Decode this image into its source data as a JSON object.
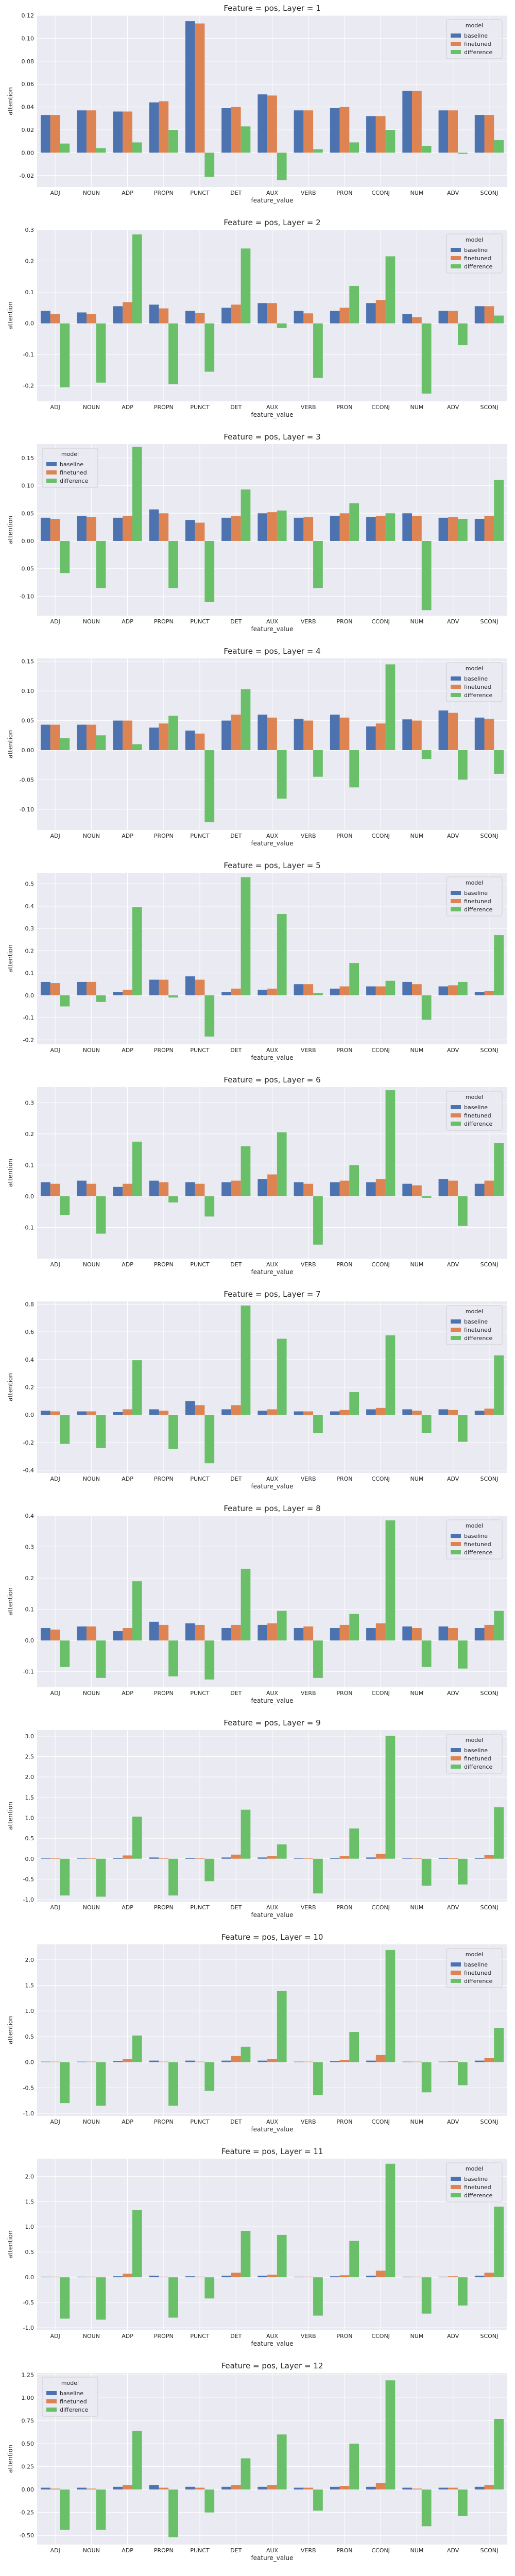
{
  "colors": {
    "baseline": "#4c72b0",
    "finetuned": "#dd8452",
    "difference": "#6abf69",
    "plot_bg": "#eaeaf2",
    "grid": "#ffffff"
  },
  "legend_title": "model",
  "chart_data": [
    {
      "type": "bar",
      "title": "Feature = pos, Layer = 1",
      "xlabel": "feature_value",
      "ylabel": "attention",
      "categories": [
        "ADJ",
        "NOUN",
        "ADP",
        "PROPN",
        "PUNCT",
        "DET",
        "AUX",
        "VERB",
        "PRON",
        "CCONJ",
        "NUM",
        "ADV",
        "SCONJ"
      ],
      "ylim": [
        -0.03,
        0.12
      ],
      "yticks": [
        -0.02,
        0.0,
        0.02,
        0.04,
        0.06,
        0.08,
        0.1,
        0.12
      ],
      "tick_decimals": 2,
      "legend_position": "top-right",
      "series": [
        {
          "name": "baseline",
          "values": [
            0.033,
            0.037,
            0.036,
            0.044,
            0.115,
            0.039,
            0.051,
            0.037,
            0.039,
            0.032,
            0.054,
            0.037,
            0.033
          ]
        },
        {
          "name": "finetuned",
          "values": [
            0.033,
            0.037,
            0.036,
            0.045,
            0.113,
            0.04,
            0.05,
            0.037,
            0.04,
            0.032,
            0.054,
            0.037,
            0.033
          ]
        },
        {
          "name": "difference",
          "values": [
            0.008,
            0.004,
            0.009,
            0.02,
            -0.021,
            0.023,
            -0.024,
            0.003,
            0.009,
            0.02,
            0.006,
            -0.001,
            0.011
          ]
        }
      ]
    },
    {
      "type": "bar",
      "title": "Feature = pos, Layer = 2",
      "xlabel": "feature_value",
      "ylabel": "attention",
      "categories": [
        "ADJ",
        "NOUN",
        "ADP",
        "PROPN",
        "PUNCT",
        "DET",
        "AUX",
        "VERB",
        "PRON",
        "CCONJ",
        "NUM",
        "ADV",
        "SCONJ"
      ],
      "ylim": [
        -0.25,
        0.3
      ],
      "yticks": [
        -0.2,
        -0.1,
        0.0,
        0.1,
        0.2,
        0.3
      ],
      "tick_decimals": 1,
      "legend_position": "top-right",
      "series": [
        {
          "name": "baseline",
          "values": [
            0.04,
            0.035,
            0.055,
            0.06,
            0.04,
            0.05,
            0.065,
            0.04,
            0.04,
            0.065,
            0.03,
            0.04,
            0.055
          ]
        },
        {
          "name": "finetuned",
          "values": [
            0.03,
            0.03,
            0.068,
            0.048,
            0.033,
            0.06,
            0.065,
            0.032,
            0.05,
            0.075,
            0.02,
            0.04,
            0.055
          ]
        },
        {
          "name": "difference",
          "values": [
            -0.205,
            -0.19,
            0.285,
            -0.195,
            -0.155,
            0.24,
            -0.015,
            -0.175,
            0.12,
            0.215,
            -0.225,
            -0.07,
            0.025
          ]
        }
      ]
    },
    {
      "type": "bar",
      "title": "Feature = pos, Layer = 3",
      "xlabel": "feature_value",
      "ylabel": "attention",
      "categories": [
        "ADJ",
        "NOUN",
        "ADP",
        "PROPN",
        "PUNCT",
        "DET",
        "AUX",
        "VERB",
        "PRON",
        "CCONJ",
        "NUM",
        "ADV",
        "SCONJ"
      ],
      "ylim": [
        -0.135,
        0.175
      ],
      "yticks": [
        -0.1,
        -0.05,
        0.0,
        0.05,
        0.1,
        0.15
      ],
      "tick_decimals": 2,
      "legend_position": "top-left",
      "series": [
        {
          "name": "baseline",
          "values": [
            0.042,
            0.045,
            0.042,
            0.057,
            0.038,
            0.042,
            0.05,
            0.042,
            0.045,
            0.043,
            0.05,
            0.042,
            0.04
          ]
        },
        {
          "name": "finetuned",
          "values": [
            0.04,
            0.043,
            0.045,
            0.05,
            0.033,
            0.045,
            0.052,
            0.043,
            0.05,
            0.045,
            0.045,
            0.043,
            0.045
          ]
        },
        {
          "name": "difference",
          "values": [
            -0.058,
            -0.085,
            0.17,
            -0.085,
            -0.11,
            0.093,
            0.055,
            -0.085,
            0.068,
            0.05,
            -0.125,
            0.04,
            0.11
          ]
        }
      ]
    },
    {
      "type": "bar",
      "title": "Feature = pos, Layer = 4",
      "xlabel": "feature_value",
      "ylabel": "attention",
      "categories": [
        "ADJ",
        "NOUN",
        "ADP",
        "PROPN",
        "PUNCT",
        "DET",
        "AUX",
        "VERB",
        "PRON",
        "CCONJ",
        "NUM",
        "ADV",
        "SCONJ"
      ],
      "ylim": [
        -0.135,
        0.155
      ],
      "yticks": [
        -0.1,
        -0.05,
        0.0,
        0.05,
        0.1,
        0.15
      ],
      "tick_decimals": 2,
      "legend_position": "top-right",
      "series": [
        {
          "name": "baseline",
          "values": [
            0.043,
            0.043,
            0.05,
            0.038,
            0.033,
            0.05,
            0.06,
            0.053,
            0.06,
            0.04,
            0.052,
            0.067,
            0.055
          ]
        },
        {
          "name": "finetuned",
          "values": [
            0.043,
            0.043,
            0.05,
            0.045,
            0.028,
            0.06,
            0.055,
            0.05,
            0.055,
            0.045,
            0.05,
            0.063,
            0.053
          ]
        },
        {
          "name": "difference",
          "values": [
            0.02,
            0.025,
            0.01,
            0.058,
            -0.122,
            0.103,
            -0.082,
            -0.045,
            -0.063,
            0.145,
            -0.015,
            -0.05,
            -0.04
          ]
        }
      ]
    },
    {
      "type": "bar",
      "title": "Feature = pos, Layer = 5",
      "xlabel": "feature_value",
      "ylabel": "attention",
      "categories": [
        "ADJ",
        "NOUN",
        "ADP",
        "PROPN",
        "PUNCT",
        "DET",
        "AUX",
        "VERB",
        "PRON",
        "CCONJ",
        "NUM",
        "ADV",
        "SCONJ"
      ],
      "ylim": [
        -0.22,
        0.55
      ],
      "yticks": [
        -0.2,
        -0.1,
        0.0,
        0.1,
        0.2,
        0.3,
        0.4,
        0.5
      ],
      "tick_decimals": 1,
      "legend_position": "top-right",
      "series": [
        {
          "name": "baseline",
          "values": [
            0.06,
            0.06,
            0.015,
            0.07,
            0.085,
            0.015,
            0.025,
            0.05,
            0.03,
            0.04,
            0.06,
            0.04,
            0.015
          ]
        },
        {
          "name": "finetuned",
          "values": [
            0.055,
            0.06,
            0.025,
            0.07,
            0.07,
            0.03,
            0.03,
            0.05,
            0.04,
            0.04,
            0.05,
            0.045,
            0.02
          ]
        },
        {
          "name": "difference",
          "values": [
            -0.05,
            -0.03,
            0.395,
            -0.01,
            -0.185,
            0.53,
            0.365,
            0.01,
            0.145,
            0.065,
            -0.11,
            0.06,
            0.27
          ]
        }
      ]
    },
    {
      "type": "bar",
      "title": "Feature = pos, Layer = 6",
      "xlabel": "feature_value",
      "ylabel": "attention",
      "categories": [
        "ADJ",
        "NOUN",
        "ADP",
        "PROPN",
        "PUNCT",
        "DET",
        "AUX",
        "VERB",
        "PRON",
        "CCONJ",
        "NUM",
        "ADV",
        "SCONJ"
      ],
      "ylim": [
        -0.2,
        0.35
      ],
      "yticks": [
        -0.1,
        0.0,
        0.1,
        0.2,
        0.3
      ],
      "tick_decimals": 1,
      "legend_position": "top-right",
      "series": [
        {
          "name": "baseline",
          "values": [
            0.045,
            0.05,
            0.03,
            0.05,
            0.045,
            0.045,
            0.055,
            0.045,
            0.045,
            0.045,
            0.04,
            0.055,
            0.04
          ]
        },
        {
          "name": "finetuned",
          "values": [
            0.04,
            0.04,
            0.04,
            0.045,
            0.04,
            0.05,
            0.07,
            0.04,
            0.05,
            0.055,
            0.035,
            0.05,
            0.05
          ]
        },
        {
          "name": "difference",
          "values": [
            -0.06,
            -0.12,
            0.175,
            -0.02,
            -0.065,
            0.16,
            0.205,
            -0.155,
            0.1,
            0.34,
            -0.005,
            -0.095,
            0.17
          ]
        }
      ]
    },
    {
      "type": "bar",
      "title": "Feature = pos, Layer = 7",
      "xlabel": "feature_value",
      "ylabel": "attention",
      "categories": [
        "ADJ",
        "NOUN",
        "ADP",
        "PROPN",
        "PUNCT",
        "DET",
        "AUX",
        "VERB",
        "PRON",
        "CCONJ",
        "NUM",
        "ADV",
        "SCONJ"
      ],
      "ylim": [
        -0.42,
        0.82
      ],
      "yticks": [
        -0.4,
        -0.2,
        0.0,
        0.2,
        0.4,
        0.6,
        0.8
      ],
      "tick_decimals": 1,
      "legend_position": "top-right",
      "series": [
        {
          "name": "baseline",
          "values": [
            0.03,
            0.025,
            0.02,
            0.04,
            0.1,
            0.04,
            0.03,
            0.025,
            0.025,
            0.04,
            0.04,
            0.04,
            0.03
          ]
        },
        {
          "name": "finetuned",
          "values": [
            0.025,
            0.025,
            0.04,
            0.03,
            0.07,
            0.07,
            0.04,
            0.025,
            0.035,
            0.05,
            0.03,
            0.035,
            0.045
          ]
        },
        {
          "name": "difference",
          "values": [
            -0.21,
            -0.24,
            0.395,
            -0.245,
            -0.35,
            0.79,
            0.55,
            -0.13,
            0.165,
            0.575,
            -0.13,
            -0.195,
            0.43
          ]
        }
      ]
    },
    {
      "type": "bar",
      "title": "Feature = pos, Layer = 8",
      "xlabel": "feature_value",
      "ylabel": "attention",
      "categories": [
        "ADJ",
        "NOUN",
        "ADP",
        "PROPN",
        "PUNCT",
        "DET",
        "AUX",
        "VERB",
        "PRON",
        "CCONJ",
        "NUM",
        "ADV",
        "SCONJ"
      ],
      "ylim": [
        -0.15,
        0.4
      ],
      "yticks": [
        -0.1,
        0.0,
        0.1,
        0.2,
        0.3,
        0.4
      ],
      "tick_decimals": 1,
      "legend_position": "top-right",
      "series": [
        {
          "name": "baseline",
          "values": [
            0.04,
            0.045,
            0.03,
            0.06,
            0.055,
            0.04,
            0.05,
            0.04,
            0.04,
            0.04,
            0.045,
            0.045,
            0.04
          ]
        },
        {
          "name": "finetuned",
          "values": [
            0.035,
            0.045,
            0.04,
            0.05,
            0.05,
            0.05,
            0.055,
            0.045,
            0.05,
            0.055,
            0.04,
            0.04,
            0.05
          ]
        },
        {
          "name": "difference",
          "values": [
            -0.085,
            -0.12,
            0.19,
            -0.115,
            -0.125,
            0.23,
            0.095,
            -0.12,
            0.085,
            0.385,
            -0.085,
            -0.09,
            0.095
          ]
        }
      ]
    },
    {
      "type": "bar",
      "title": "Feature = pos, Layer = 9",
      "xlabel": "feature_value",
      "ylabel": "attention",
      "categories": [
        "ADJ",
        "NOUN",
        "ADP",
        "PROPN",
        "PUNCT",
        "DET",
        "AUX",
        "VERB",
        "PRON",
        "CCONJ",
        "NUM",
        "ADV",
        "SCONJ"
      ],
      "ylim": [
        -1.05,
        3.15
      ],
      "yticks": [
        -1.0,
        -0.5,
        0.0,
        0.5,
        1.0,
        1.5,
        2.0,
        2.5,
        3.0
      ],
      "tick_decimals": 1,
      "legend_position": "top-right",
      "series": [
        {
          "name": "baseline",
          "values": [
            0.01,
            0.01,
            0.02,
            0.03,
            0.02,
            0.03,
            0.03,
            0.01,
            0.02,
            0.03,
            0.01,
            0.02,
            0.02
          ]
        },
        {
          "name": "finetuned",
          "values": [
            0.01,
            0.01,
            0.08,
            0.01,
            0.01,
            0.1,
            0.06,
            0.01,
            0.06,
            0.12,
            0.01,
            0.02,
            0.09
          ]
        },
        {
          "name": "difference",
          "values": [
            -0.9,
            -0.93,
            1.03,
            -0.9,
            -0.55,
            1.2,
            0.35,
            -0.85,
            0.74,
            3.01,
            -0.66,
            -0.63,
            1.26
          ]
        }
      ]
    },
    {
      "type": "bar",
      "title": "Feature = pos, Layer = 10",
      "xlabel": "feature_value",
      "ylabel": "attention",
      "categories": [
        "ADJ",
        "NOUN",
        "ADP",
        "PROPN",
        "PUNCT",
        "DET",
        "AUX",
        "VERB",
        "PRON",
        "CCONJ",
        "NUM",
        "ADV",
        "SCONJ"
      ],
      "ylim": [
        -1.05,
        2.3
      ],
      "yticks": [
        -1.0,
        -0.5,
        0.0,
        0.5,
        1.0,
        1.5,
        2.0
      ],
      "tick_decimals": 1,
      "legend_position": "top-right",
      "series": [
        {
          "name": "baseline",
          "values": [
            0.01,
            0.01,
            0.02,
            0.03,
            0.03,
            0.03,
            0.03,
            0.01,
            0.02,
            0.03,
            0.01,
            0.01,
            0.03
          ]
        },
        {
          "name": "finetuned",
          "values": [
            0.01,
            0.01,
            0.06,
            0.01,
            0.01,
            0.12,
            0.06,
            0.01,
            0.04,
            0.14,
            0.01,
            0.02,
            0.08
          ]
        },
        {
          "name": "difference",
          "values": [
            -0.8,
            -0.85,
            0.52,
            -0.85,
            -0.56,
            0.3,
            1.39,
            -0.64,
            0.59,
            2.19,
            -0.59,
            -0.45,
            0.67
          ]
        }
      ]
    },
    {
      "type": "bar",
      "title": "Feature = pos, Layer = 11",
      "xlabel": "feature_value",
      "ylabel": "attention",
      "categories": [
        "ADJ",
        "NOUN",
        "ADP",
        "PROPN",
        "PUNCT",
        "DET",
        "AUX",
        "VERB",
        "PRON",
        "CCONJ",
        "NUM",
        "ADV",
        "SCONJ"
      ],
      "ylim": [
        -1.05,
        2.35
      ],
      "yticks": [
        -1.0,
        -0.5,
        0.0,
        0.5,
        1.0,
        1.5,
        2.0
      ],
      "tick_decimals": 1,
      "legend_position": "top-right",
      "series": [
        {
          "name": "baseline",
          "values": [
            0.01,
            0.01,
            0.02,
            0.03,
            0.02,
            0.03,
            0.03,
            0.01,
            0.02,
            0.03,
            0.01,
            0.01,
            0.03
          ]
        },
        {
          "name": "finetuned",
          "values": [
            0.01,
            0.01,
            0.07,
            0.01,
            0.01,
            0.09,
            0.05,
            0.01,
            0.04,
            0.13,
            0.01,
            0.02,
            0.09
          ]
        },
        {
          "name": "difference",
          "values": [
            -0.82,
            -0.84,
            1.33,
            -0.8,
            -0.42,
            0.92,
            0.84,
            -0.76,
            0.72,
            2.25,
            -0.72,
            -0.56,
            1.4
          ]
        }
      ]
    },
    {
      "type": "bar",
      "title": "Feature = pos, Layer = 12",
      "xlabel": "feature_value",
      "ylabel": "attention",
      "categories": [
        "ADJ",
        "NOUN",
        "ADP",
        "PROPN",
        "PUNCT",
        "DET",
        "AUX",
        "VERB",
        "PRON",
        "CCONJ",
        "NUM",
        "ADV",
        "SCONJ"
      ],
      "ylim": [
        -0.6,
        1.27
      ],
      "yticks": [
        -0.5,
        -0.25,
        0.0,
        0.25,
        0.5,
        0.75,
        1.0,
        1.25
      ],
      "tick_decimals": 2,
      "legend_position": "top-left",
      "series": [
        {
          "name": "baseline",
          "values": [
            0.02,
            0.02,
            0.03,
            0.05,
            0.03,
            0.03,
            0.03,
            0.02,
            0.03,
            0.03,
            0.02,
            0.02,
            0.03
          ]
        },
        {
          "name": "finetuned",
          "values": [
            0.01,
            0.01,
            0.05,
            0.02,
            0.02,
            0.05,
            0.05,
            0.02,
            0.04,
            0.07,
            0.01,
            0.02,
            0.05
          ]
        },
        {
          "name": "difference",
          "values": [
            -0.44,
            -0.44,
            0.64,
            -0.52,
            -0.25,
            0.34,
            0.6,
            -0.23,
            0.5,
            1.19,
            -0.4,
            -0.29,
            0.77
          ]
        }
      ]
    }
  ]
}
